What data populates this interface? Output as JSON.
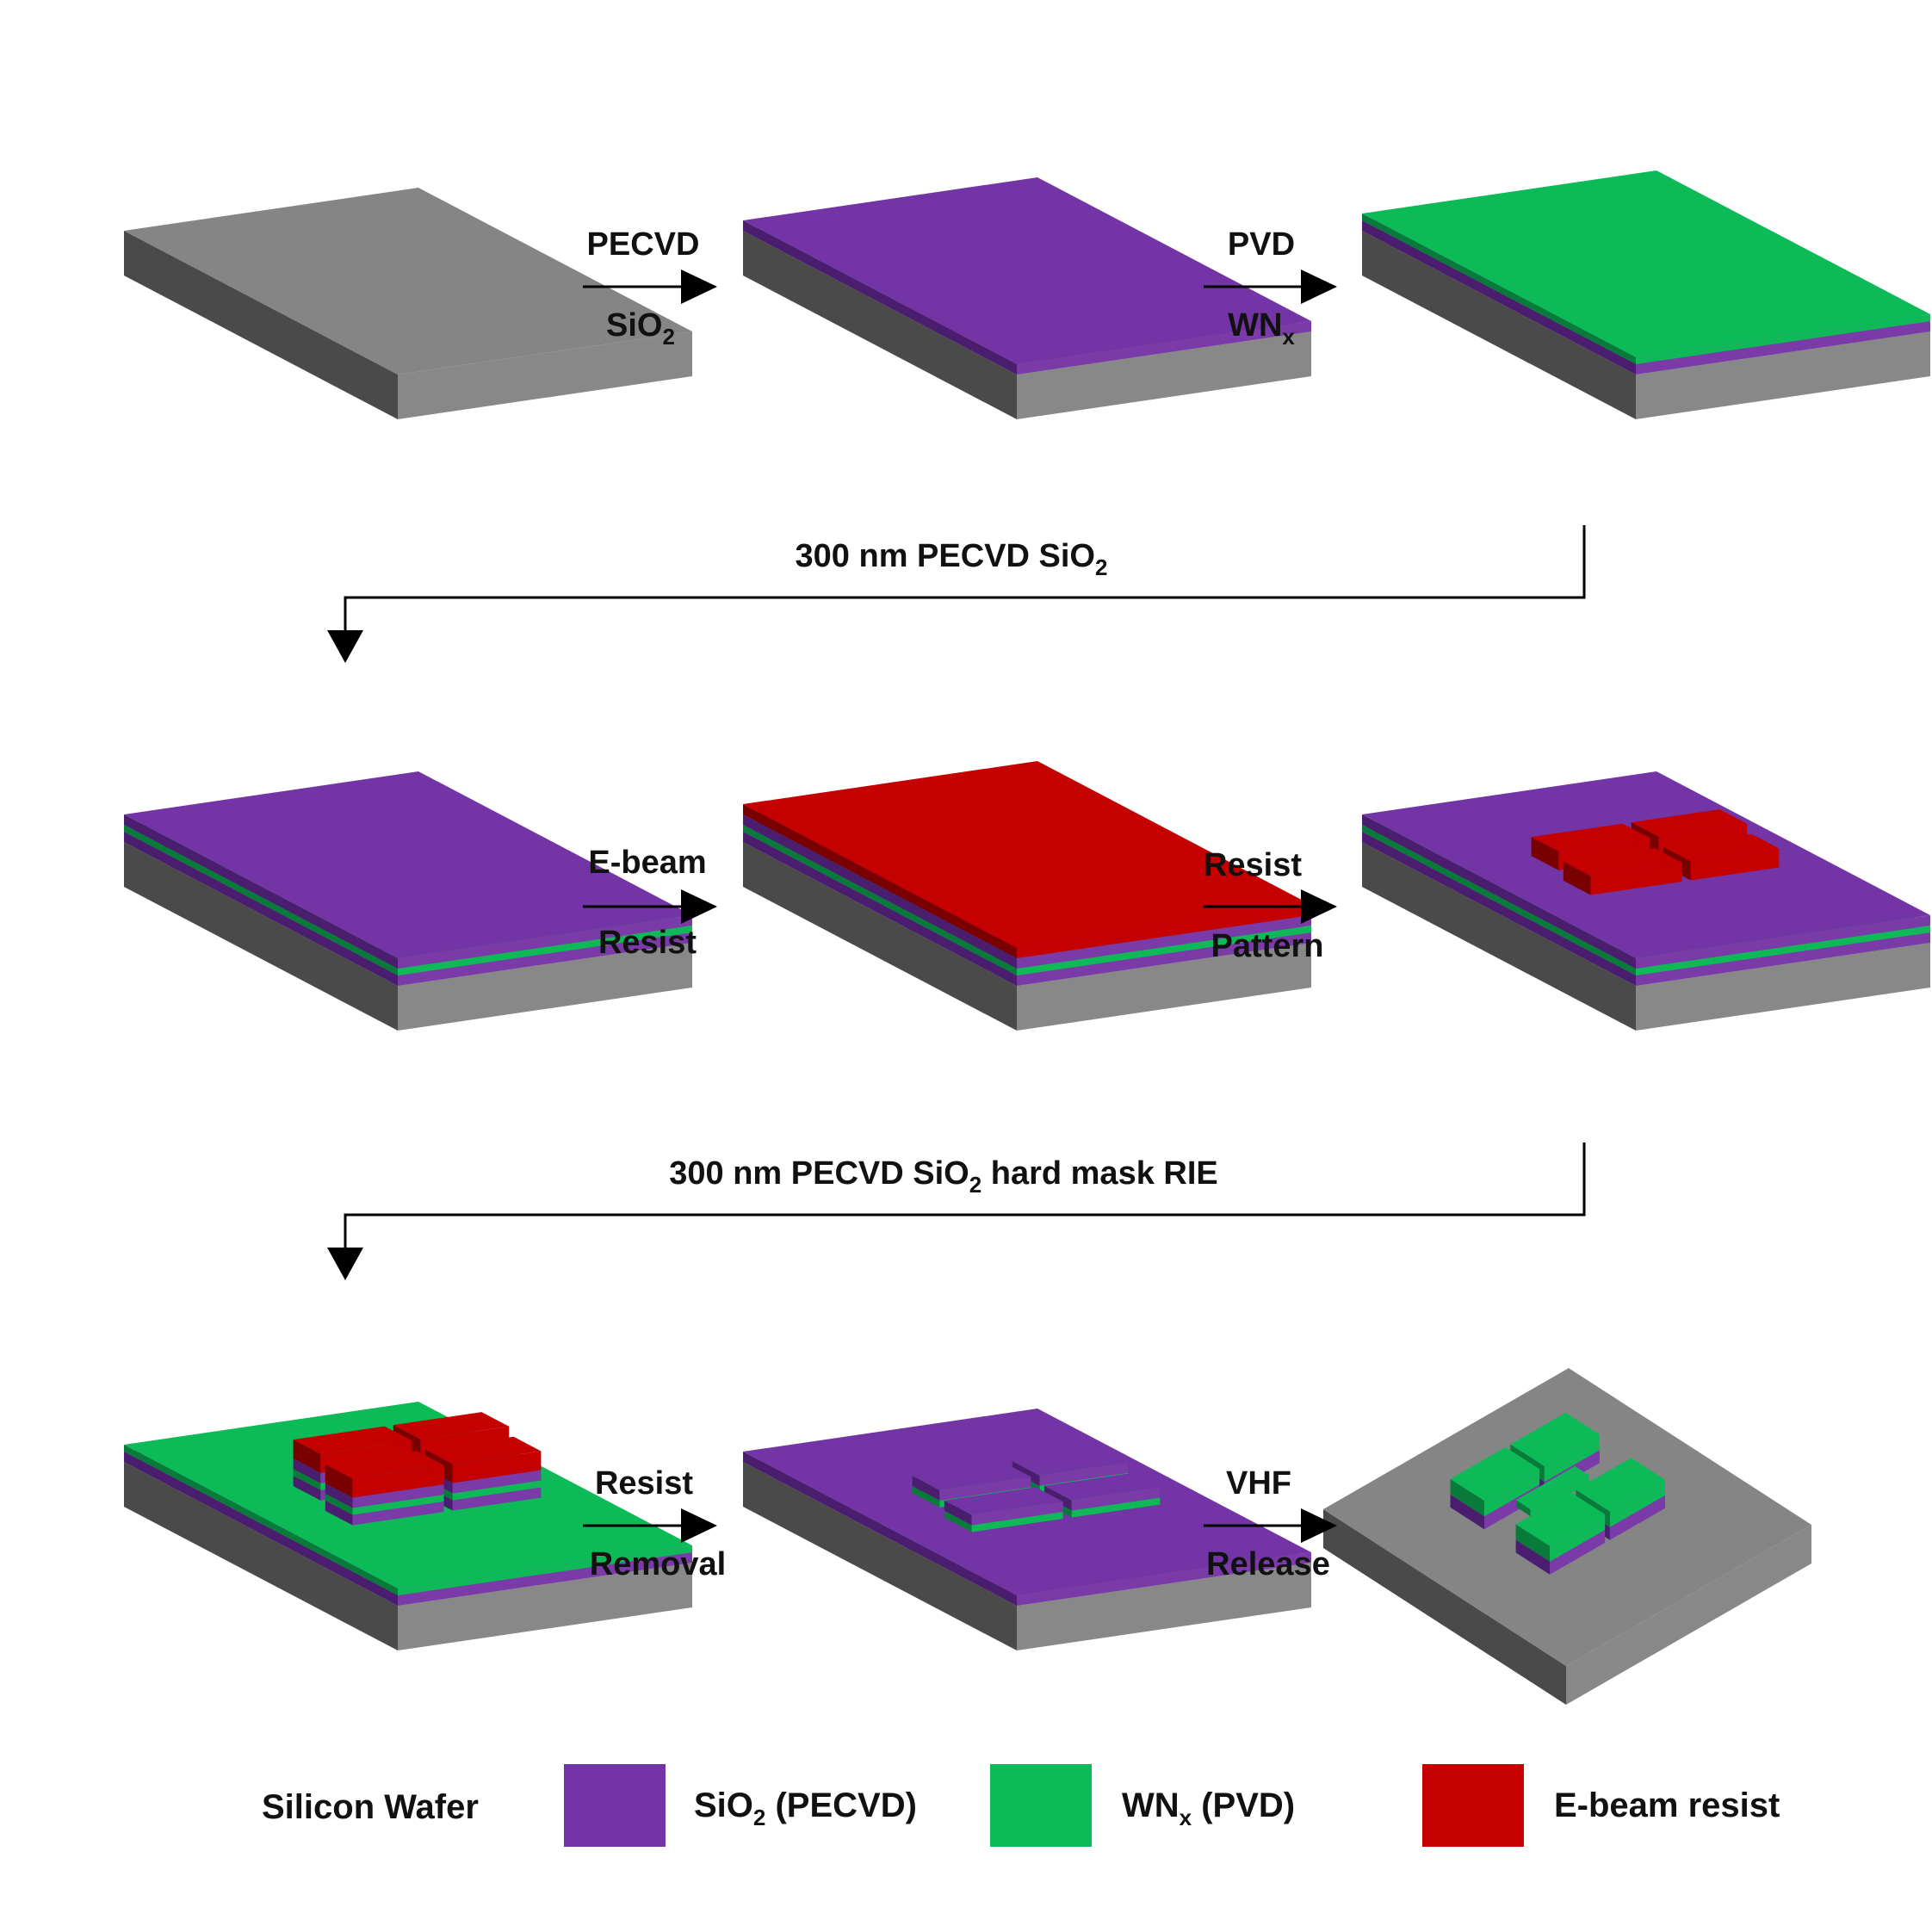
{
  "colors": {
    "silicon_top": "#858585",
    "silicon_front": "#888888",
    "silicon_side": "#4a4a4a",
    "sio2_top": "#7335a6",
    "sio2_front": "#7a3aa8",
    "sio2_side": "#4a1d6e",
    "wnx_top": "#0cbb57",
    "wnx_front": "#10b957",
    "wnx_side": "#087a3a",
    "resist_top": "#c40000",
    "resist_front": "#c50000",
    "resist_side": "#7a0000",
    "line": "#000000",
    "text": "#111111"
  },
  "steps": [
    {
      "name": "bare-silicon-wafer",
      "layers": [
        "silicon"
      ]
    },
    {
      "name": "sio2-deposited",
      "layers": [
        "silicon",
        "sio2"
      ]
    },
    {
      "name": "wnx-deposited",
      "layers": [
        "silicon",
        "sio2",
        "wnx"
      ]
    },
    {
      "name": "capping-sio2-deposited",
      "layers": [
        "silicon",
        "sio2",
        "wnx",
        "sio2"
      ]
    },
    {
      "name": "resist-coated",
      "layers": [
        "silicon",
        "sio2",
        "wnx",
        "sio2",
        "resist"
      ]
    },
    {
      "name": "resist-patterned",
      "layers": [
        "silicon",
        "sio2",
        "wnx",
        "sio2"
      ],
      "pattern": "resist"
    },
    {
      "name": "hard-mask-etched",
      "layers": [
        "silicon",
        "sio2",
        "wnx"
      ],
      "pattern": "resist-on-stack"
    },
    {
      "name": "resist-removed",
      "layers": [
        "silicon",
        "sio2"
      ],
      "pattern": "stack"
    },
    {
      "name": "vhf-released",
      "layers": [
        "silicon"
      ],
      "pattern": "released"
    }
  ],
  "arrows": {
    "a1": {
      "top": "PECVD",
      "bottom_main": "SiO",
      "bottom_sub": "2"
    },
    "a2": {
      "top": "PVD",
      "bottom_main": "WN",
      "bottom_sub": "x"
    },
    "a3": {
      "top": "E-beam",
      "bottom_main": "Resist",
      "bottom_sub": ""
    },
    "a4": {
      "top": "Resist",
      "bottom_main": "Pattern",
      "bottom_sub": ""
    },
    "a5": {
      "top": "Resist",
      "bottom_main": "Removal",
      "bottom_sub": ""
    },
    "a6": {
      "top": "VHF",
      "bottom_main": "Release",
      "bottom_sub": ""
    }
  },
  "connectors": {
    "c1": {
      "main": "300 nm PECVD SiO",
      "sub": "2",
      "tail": ""
    },
    "c2": {
      "main": "300 nm PECVD SiO",
      "sub": "2",
      "tail": " hard mask RIE"
    }
  },
  "legend": [
    {
      "name": "silicon-wafer",
      "label": "Silicon Wafer",
      "sub": "",
      "tail": "",
      "color": ""
    },
    {
      "name": "sio2",
      "label": "SiO",
      "sub": "2",
      "tail": " (PECVD)",
      "color": "#7335a6"
    },
    {
      "name": "wnx",
      "label": "WN",
      "sub": "x",
      "tail": " (PVD)",
      "color": "#0cbb57"
    },
    {
      "name": "resist",
      "label": "E-beam resist",
      "sub": "",
      "tail": "",
      "color": "#c40000"
    }
  ]
}
